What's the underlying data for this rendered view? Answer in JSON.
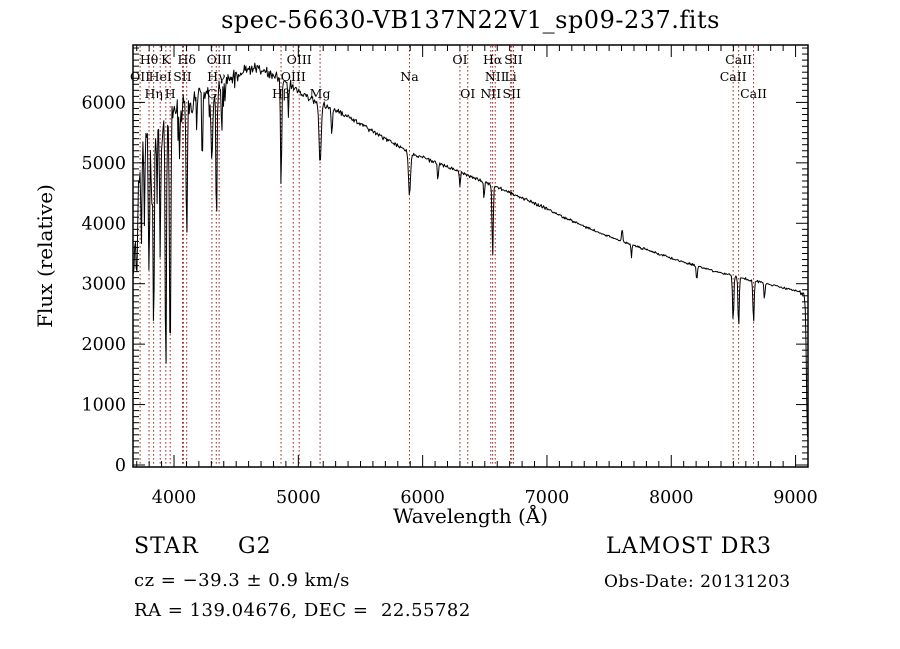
{
  "chart_data": {
    "type": "line",
    "title": "spec-56630-VB137N22V1_sp09-237.fits",
    "xlabel": "Wavelength (Å)",
    "ylabel": "Flux (relative)",
    "xlim": [
      3670,
      9100
    ],
    "ylim": [
      0,
      6950
    ],
    "x_ticks": [
      4000,
      5000,
      6000,
      7000,
      8000,
      9000
    ],
    "y_ticks": [
      0,
      1000,
      2000,
      3000,
      4000,
      5000,
      6000
    ],
    "x_minor_step": 100,
    "y_minor_step": 100,
    "grid": false,
    "legend": "none",
    "line_color": "#000000",
    "marker_color": "#9b2d2d",
    "continuum": {
      "wavelengths": [
        3670,
        3690,
        3720,
        3750,
        3800,
        3850,
        3900,
        3950,
        4000,
        4050,
        4100,
        4150,
        4200,
        4250,
        4300,
        4350,
        4400,
        4450,
        4500,
        4550,
        4600,
        4650,
        4700,
        4750,
        4800,
        4850,
        4900,
        4950,
        5000,
        5050,
        5100,
        5150,
        5200,
        5250,
        5300,
        5350,
        5400,
        5450,
        5500,
        5550,
        5600,
        5650,
        5700,
        5750,
        5800,
        5850,
        5900,
        5950,
        6000,
        6100,
        6200,
        6300,
        6400,
        6500,
        6600,
        6700,
        6800,
        6900,
        7000,
        7100,
        7200,
        7300,
        7400,
        7500,
        7600,
        7700,
        7800,
        7900,
        8000,
        8100,
        8200,
        8300,
        8400,
        8500,
        8600,
        8700,
        8800,
        8900,
        9000,
        9040,
        9070,
        9082,
        9090,
        9096
      ],
      "flux": [
        3000,
        3900,
        5100,
        5350,
        5550,
        5600,
        5650,
        5700,
        5850,
        5900,
        6000,
        6050,
        6100,
        6150,
        6200,
        6250,
        6320,
        6380,
        6450,
        6500,
        6530,
        6550,
        6540,
        6500,
        6450,
        6400,
        6330,
        6250,
        6180,
        6120,
        6060,
        6010,
        5960,
        5920,
        5870,
        5820,
        5760,
        5700,
        5640,
        5580,
        5520,
        5460,
        5400,
        5340,
        5280,
        5220,
        5170,
        5120,
        5100,
        5000,
        4930,
        4850,
        4760,
        4680,
        4600,
        4510,
        4420,
        4330,
        4240,
        4140,
        4040,
        3950,
        3860,
        3780,
        3700,
        3630,
        3560,
        3490,
        3420,
        3360,
        3300,
        3240,
        3180,
        3130,
        3080,
        3030,
        2980,
        2930,
        2890,
        2870,
        2820,
        2400,
        1000,
        520
      ]
    },
    "noise_profile": [
      [
        3700,
        500
      ],
      [
        3730,
        400
      ],
      [
        4000,
        320
      ],
      [
        4200,
        250
      ],
      [
        4450,
        190
      ],
      [
        4700,
        135
      ],
      [
        5000,
        100
      ],
      [
        5300,
        65
      ],
      [
        5800,
        48
      ],
      [
        6300,
        40
      ],
      [
        7000,
        34
      ],
      [
        8000,
        28
      ],
      [
        9040,
        26
      ],
      [
        9200,
        60
      ]
    ],
    "absorption_features": [
      [
        3700,
        6,
        1200
      ],
      [
        3737,
        5,
        1700
      ],
      [
        3762,
        4,
        1400
      ],
      [
        3799,
        5,
        2500
      ],
      [
        3820,
        4,
        1300
      ],
      [
        3836,
        5,
        3400
      ],
      [
        3863,
        4,
        1100
      ],
      [
        3889,
        5,
        2300
      ],
      [
        3934,
        5,
        4300
      ],
      [
        3969,
        5,
        4150
      ],
      [
        4045,
        4,
        900
      ],
      [
        4102,
        5,
        2400
      ],
      [
        4227,
        4,
        1300
      ],
      [
        4305,
        7,
        1200
      ],
      [
        4341,
        5,
        2250
      ],
      [
        4384,
        4,
        800
      ],
      [
        4861,
        5,
        1750
      ],
      [
        4920,
        4,
        500
      ],
      [
        5175,
        9,
        1000
      ],
      [
        5270,
        5,
        450
      ],
      [
        5894,
        8,
        720
      ],
      [
        6122,
        4,
        300
      ],
      [
        6300,
        4,
        260
      ],
      [
        6494,
        4,
        300
      ],
      [
        6563,
        5,
        1150
      ],
      [
        7605,
        4,
        -260
      ],
      [
        7680,
        4,
        200
      ],
      [
        8205,
        5,
        250
      ],
      [
        8498,
        5,
        760
      ],
      [
        8542,
        5,
        830
      ],
      [
        8662,
        5,
        700
      ],
      [
        8750,
        4,
        250
      ]
    ],
    "spectral_lines": [
      {
        "label": "OII",
        "wavelength": 3727,
        "row": 2
      },
      {
        "label": "Hθ",
        "wavelength": 3799,
        "row": 1
      },
      {
        "label": "Hη",
        "wavelength": 3836,
        "row": 3
      },
      {
        "label": "HeI",
        "wavelength": 3889,
        "row": 2
      },
      {
        "label": "K",
        "wavelength": 3934,
        "row": 1
      },
      {
        "label": "H",
        "wavelength": 3969,
        "row": 3
      },
      {
        "label": "SII",
        "wavelength": 4068,
        "row": 2
      },
      {
        "label": "",
        "wavelength": 4076,
        "row": 0
      },
      {
        "label": "Hδ",
        "wavelength": 4102,
        "row": 1
      },
      {
        "label": "G",
        "wavelength": 4305,
        "row": 3
      },
      {
        "label": "Hγ",
        "wavelength": 4340,
        "row": 2
      },
      {
        "label": "OIII",
        "wavelength": 4363,
        "row": 1
      },
      {
        "label": "Hβ",
        "wavelength": 4861,
        "row": 3
      },
      {
        "label": "OIII",
        "wavelength": 4959,
        "row": 2
      },
      {
        "label": "OIII",
        "wavelength": 5007,
        "row": 1
      },
      {
        "label": "Mg",
        "wavelength": 5175,
        "row": 3
      },
      {
        "label": "Na",
        "wavelength": 5894,
        "row": 2
      },
      {
        "label": "OI",
        "wavelength": 6300,
        "row": 1
      },
      {
        "label": "OI",
        "wavelength": 6363,
        "row": 3
      },
      {
        "label": "NII",
        "wavelength": 6548,
        "row": 3
      },
      {
        "label": "Hα",
        "wavelength": 6563,
        "row": 1
      },
      {
        "label": "NII",
        "wavelength": 6584,
        "row": 2
      },
      {
        "label": "Li",
        "wavelength": 6708,
        "row": 2
      },
      {
        "label": "SII",
        "wavelength": 6717,
        "row": 3
      },
      {
        "label": "SII",
        "wavelength": 6731,
        "row": 1
      },
      {
        "label": "CaII",
        "wavelength": 8498,
        "row": 2
      },
      {
        "label": "CaII",
        "wavelength": 8542,
        "row": 1
      },
      {
        "label": "CaII",
        "wavelength": 8662,
        "row": 3
      }
    ]
  },
  "footer": {
    "object_class": "STAR",
    "subclass": "G2",
    "survey": "LAMOST DR3",
    "cz": "cz = −39.3 ± 0.9 km/s",
    "obsdate": "Obs-Date: 20131203",
    "radec": "RA = 139.04676, DEC =  22.55782"
  }
}
